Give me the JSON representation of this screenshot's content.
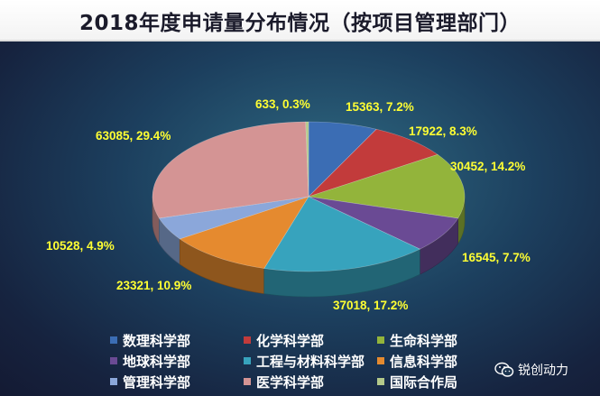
{
  "title": "2018年度申请量分布情况（按项目管理部门）",
  "chart_data": {
    "type": "pie",
    "style": "3d",
    "legend_position": "bottom",
    "slices": [
      {
        "name": "数理科学部",
        "value": 15363,
        "percent": "7.2%",
        "color": "#3b6db4"
      },
      {
        "name": "化学科学部",
        "value": 17922,
        "percent": "8.3%",
        "color": "#c23b3b"
      },
      {
        "name": "生命科学部",
        "value": 30452,
        "percent": "14.2%",
        "color": "#93b43b"
      },
      {
        "name": "地球科学部",
        "value": 16545,
        "percent": "7.7%",
        "color": "#6a4a94"
      },
      {
        "name": "工程与材料科学部",
        "value": 37018,
        "percent": "17.2%",
        "color": "#37a3bd"
      },
      {
        "name": "信息科学部",
        "value": 23321,
        "percent": "10.9%",
        "color": "#e58a2f"
      },
      {
        "name": "管理科学部",
        "value": 10528,
        "percent": "4.9%",
        "color": "#8ba7da"
      },
      {
        "name": "医学科学部",
        "value": 63085,
        "percent": "29.4%",
        "color": "#d49494"
      },
      {
        "name": "国际合作局",
        "value": 633,
        "percent": "0.3%",
        "color": "#b3c98a"
      }
    ]
  },
  "labels": [
    "15363, 7.2%",
    "17922, 8.3%",
    "30452, 14.2%",
    "16545, 7.7%",
    "37018, 17.2%",
    "23321, 10.9%",
    "10528, 4.9%",
    "63085, 29.4%",
    "633, 0.3%"
  ],
  "legend_order": [
    0,
    1,
    2,
    3,
    4,
    5,
    6,
    7,
    8
  ],
  "watermark": {
    "text": "锐创动力",
    "icon": "wechat-icon"
  }
}
